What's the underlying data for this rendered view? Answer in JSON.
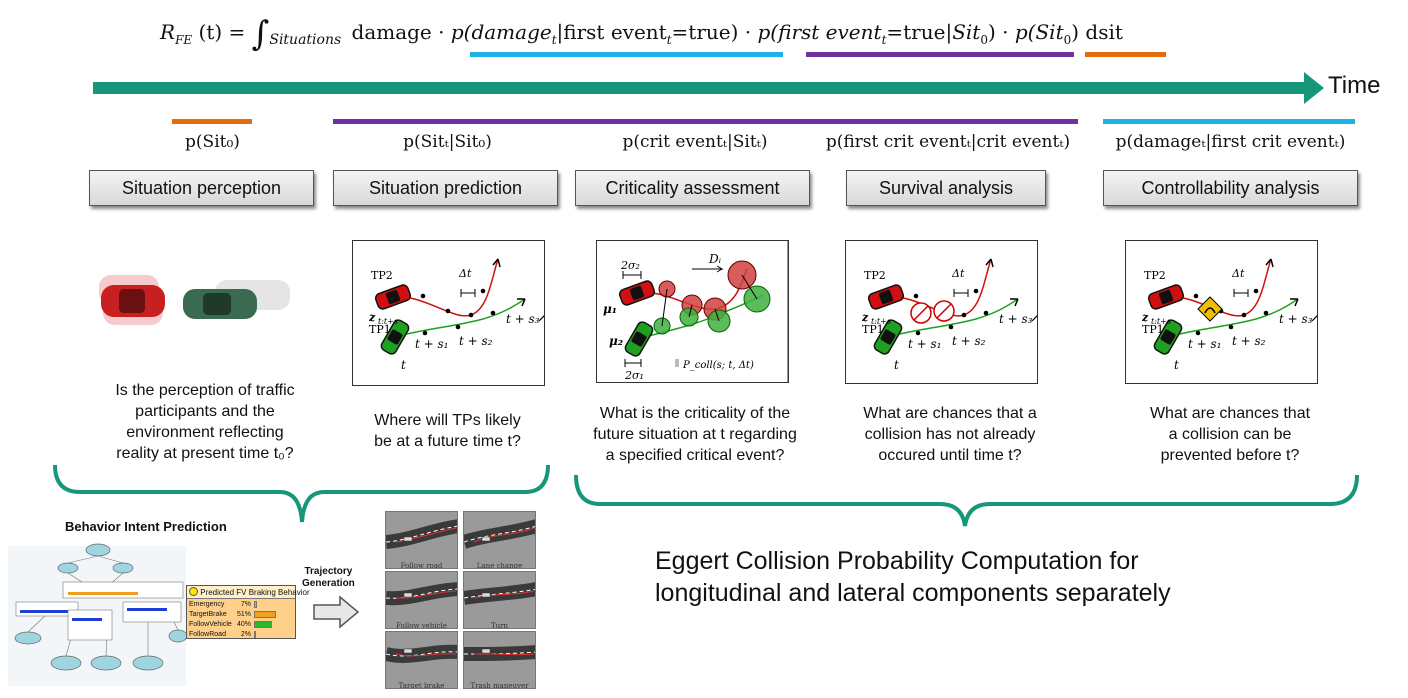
{
  "formula": {
    "lhs": "R",
    "lhs_sub": "FE",
    "lhs_arg": "(t) =",
    "integral_sub": "Situations",
    "term_damage": "damage ·",
    "term_p_damage": "p(damage",
    "term_p_damage_rest": "|first event",
    "term_p_damage_end": "=true) ·",
    "term_p_first": "p(first event",
    "term_p_first_rest": "=true|",
    "term_p_first_end": ") ·",
    "term_p_sit": "p(",
    "term_p_sit_end": ") dsit",
    "sub_t": "t",
    "sit0": "Sit",
    "sit0_sub": "0"
  },
  "colors": {
    "teal": "#17977a",
    "blue": "#1fb0e6",
    "purple": "#7030a0",
    "orange": "#e46c0a",
    "ellipse": "#9fd5e0"
  },
  "timeline": {
    "label": "Time"
  },
  "stages": [
    {
      "prob": "p(Sit₀)",
      "box": "Situation perception",
      "question": [
        "Is the perception of traffic",
        "participants and the",
        "environment reflecting",
        "reality at present time t₀?"
      ]
    },
    {
      "prob": "p(Sitₜ|Sit₀)",
      "box": "Situation prediction",
      "question": [
        "Where will  TPs likely",
        "be at a future time t?"
      ]
    },
    {
      "prob": "p(crit eventₜ|Sitₜ)",
      "box": "Criticality assessment",
      "question": [
        "What is the criticality of the",
        "future situation at t regarding",
        "a specified critical event?"
      ]
    },
    {
      "prob": "p(first crit eventₜ|crit eventₜ)",
      "box": "Survival analysis",
      "question": [
        "What are chances that a",
        "collision  has not already",
        "occured until time t?"
      ]
    },
    {
      "prob": "p(damageₜ|first crit eventₜ)",
      "box": "Controllability analysis",
      "question": [
        "What are chances that",
        "a collision  can be",
        "prevented before t?"
      ]
    }
  ],
  "panel_labels": {
    "tp1": "TP1",
    "tp2": "TP2",
    "dt": "Δt",
    "z": "z",
    "z_sub": "t:t+s",
    "t": "t",
    "t_s1": "t + s₁",
    "t_s2": "t + s₂",
    "t_s3": "t + s₃",
    "sigma2": "2σ₂",
    "sigma1": "2σ₁",
    "di": "Dᵢ",
    "mu1": "μ₁",
    "mu2": "μ₂",
    "pcoll": "P_coll(s; t, Δt)"
  },
  "bottom": {
    "behavior_title": "Behavior Intent Prediction",
    "trajectory_label": [
      "Trajectory",
      "Generation"
    ],
    "braking_title": "Predicted FV Braking Behavior",
    "braking_rows": [
      {
        "name": "Emergency",
        "pct": "7%",
        "value": 0.07,
        "color": "#f0a020"
      },
      {
        "name": "TargetBrake",
        "pct": "51%",
        "value": 0.51,
        "color": "#f0a020"
      },
      {
        "name": "FollowVehicle",
        "pct": "40%",
        "value": 0.4,
        "color": "#2db52d"
      },
      {
        "name": "FollowRoad",
        "pct": "2%",
        "value": 0.02,
        "color": "#f0a020"
      }
    ],
    "road_captions": [
      "Follow road",
      "Lane change",
      "Follow vehicle",
      "Turn",
      "Target brake",
      "Trash maneuver class"
    ],
    "eggert": [
      "Eggert Collision Probability Computation for",
      "longitudinal and lateral components separately"
    ]
  }
}
